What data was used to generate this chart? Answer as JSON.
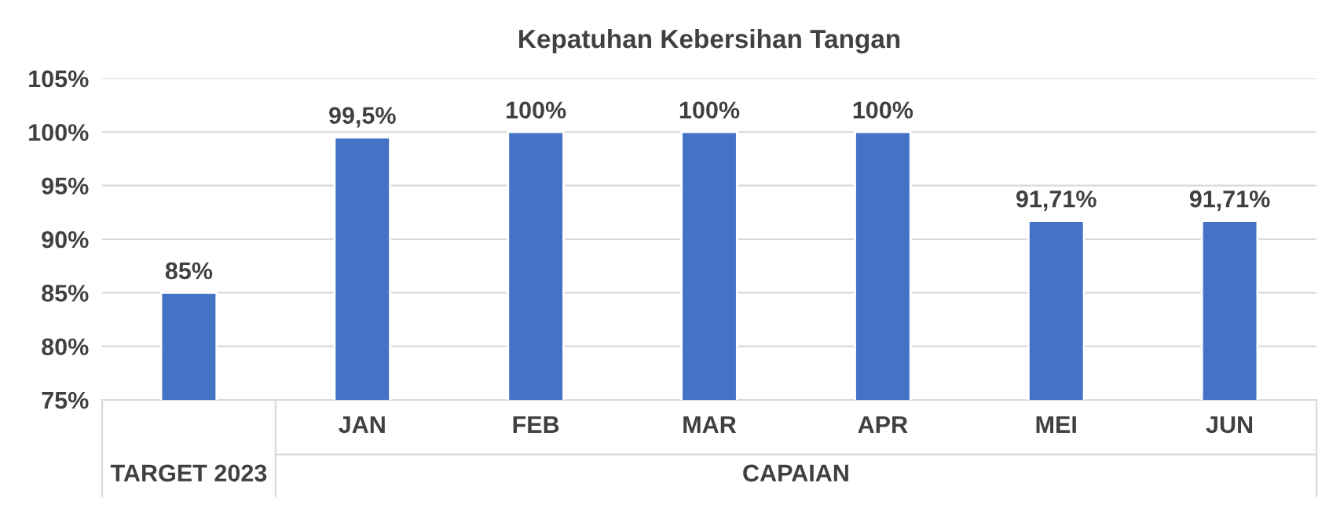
{
  "chart_data": {
    "type": "bar",
    "title": "Kepatuhan Kebersihan Tangan",
    "categories": [
      null,
      "JAN",
      "FEB",
      "MAR",
      "APR",
      "MEI",
      "JUN"
    ],
    "values": [
      85,
      99.5,
      100,
      100,
      100,
      91.71,
      91.71
    ],
    "value_labels": [
      "85%",
      "99,5%",
      "100%",
      "100%",
      "100%",
      "91,71%",
      "91,71%"
    ],
    "color": "#4472c4",
    "ylim": [
      75,
      105
    ],
    "yticks": [
      {
        "value": 75,
        "label": "75%"
      },
      {
        "value": 80,
        "label": "80%"
      },
      {
        "value": 85,
        "label": "85%"
      },
      {
        "value": 90,
        "label": "90%"
      },
      {
        "value": 95,
        "label": "95%"
      },
      {
        "value": 100,
        "label": "100%"
      },
      {
        "value": 105,
        "label": "105%"
      }
    ],
    "grid": "y",
    "legend": false,
    "annotations": [
      "TARGET 2023",
      "CAPAIAN"
    ]
  }
}
